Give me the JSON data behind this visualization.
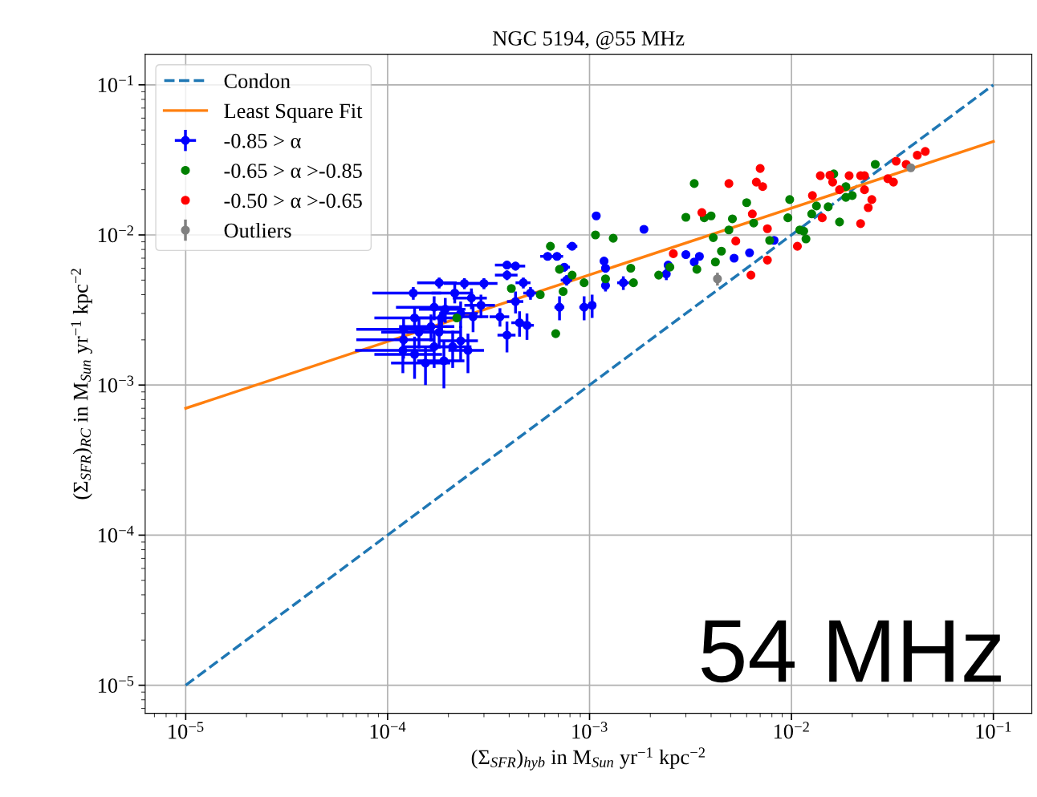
{
  "chart_data": {
    "type": "scatter",
    "title": "NGC 5194, @55 MHz",
    "xlabel": "(Σ$_{SFR}$)$_{hyb}$ in M$_{Sun}$ yr$^{−1}$ kpc$^{−2}$",
    "ylabel": "(Σ$_{SFR}$)$_{RC}$ in M$_{Sun}$ yr$^{−1}$ kpc$^{−2}$",
    "annotations": [
      "54 MHz"
    ],
    "log": "xy",
    "grid": true,
    "legend": "top left",
    "marker": "circle",
    "xlim": [
      6.3e-06,
      0.155
    ],
    "ylim": [
      6.5e-06,
      0.16
    ],
    "xticks": [
      {
        "value": 1e-05,
        "label": "10$^{−5}$"
      },
      {
        "value": 0.0001,
        "label": "10$^{−4}$"
      },
      {
        "value": 0.001,
        "label": "10$^{−3}$"
      },
      {
        "value": 0.01,
        "label": "10$^{−2}$"
      },
      {
        "value": 0.1,
        "label": "10$^{−1}$"
      }
    ],
    "yticks": [
      {
        "value": 1e-05,
        "label": "10$^{−5}$"
      },
      {
        "value": 0.0001,
        "label": "10$^{−4}$"
      },
      {
        "value": 0.001,
        "label": "10$^{−3}$"
      },
      {
        "value": 0.01,
        "label": "10$^{−2}$"
      },
      {
        "value": 0.1,
        "label": "10$^{−1}$"
      }
    ],
    "series": [
      {
        "name": "Condon",
        "type": "line",
        "line_style": "dashed",
        "marker": "none",
        "color": "#1f77b4",
        "x": [
          1e-05,
          0.1
        ],
        "values": [
          1e-05,
          0.1
        ]
      },
      {
        "name": "Least Square Fit",
        "type": "line",
        "line_style": "solid",
        "marker": "none",
        "color": "#ff7f0e",
        "x": [
          1e-05,
          0.1
        ],
        "values": [
          0.0007,
          0.042
        ]
      },
      {
        "name": "-0.85 > α",
        "color": "#0000ff",
        "x": [
          0.00108,
          0.00082,
          0.00062,
          0.00069,
          0.00075,
          0.00077,
          0.00071,
          0.00094,
          0.00103,
          0.00118,
          0.0012,
          0.0012,
          0.00039,
          0.00043,
          0.00039,
          0.00047,
          0.00051,
          0.00043,
          0.00036,
          0.00045,
          0.00049,
          0.00039,
          0.0003,
          0.00024,
          0.00018,
          0.000134,
          0.000215,
          0.00026,
          0.00029,
          0.000265,
          0.00023,
          0.000193,
          0.00017,
          0.000136,
          0.00012,
          0.000143,
          0.00012,
          0.000119,
          0.000136,
          0.00017,
          0.00018,
          0.00021,
          0.00023,
          0.00025,
          0.00019,
          0.000154,
          0.000185,
          0.000164,
          0.00186,
          0.003,
          0.0035,
          0.0033,
          0.00245,
          0.0024,
          0.00147,
          0.0052,
          0.0062,
          0.0082
        ],
        "values": [
          0.0134,
          0.0084,
          0.0072,
          0.0072,
          0.0061,
          0.005,
          0.0033,
          0.0033,
          0.0034,
          0.0067,
          0.006,
          0.0046,
          0.0063,
          0.0062,
          0.0054,
          0.0048,
          0.0041,
          0.0036,
          0.00285,
          0.0026,
          0.0025,
          0.00215,
          0.00475,
          0.00475,
          0.0048,
          0.0041,
          0.0041,
          0.0038,
          0.0034,
          0.00285,
          0.003,
          0.0032,
          0.0033,
          0.0028,
          0.00235,
          0.00225,
          0.002,
          0.0017,
          0.0016,
          0.0018,
          0.00225,
          0.0018,
          0.00197,
          0.0017,
          0.00145,
          0.0014,
          0.0028,
          0.00245,
          0.0109,
          0.0074,
          0.0072,
          0.0066,
          0.0063,
          0.0055,
          0.0048,
          0.007,
          0.0076,
          0.0092
        ],
        "xerrors": [
          5e-05,
          5e-05,
          5e-05,
          5e-05,
          5e-05,
          5e-05,
          4e-05,
          5e-05,
          5e-05,
          5e-05,
          5e-05,
          5e-05,
          5e-05,
          5e-05,
          5e-05,
          4e-05,
          4e-05,
          4e-05,
          4e-05,
          4e-05,
          4e-05,
          4e-05,
          5e-05,
          5e-05,
          4e-05,
          5e-05,
          5e-05,
          5e-05,
          5e-05,
          5e-05,
          5e-05,
          5e-05,
          6e-05,
          5e-05,
          5e-05,
          5e-05,
          5e-05,
          5e-05,
          5e-05,
          5e-05,
          5e-05,
          5e-05,
          5e-05,
          5e-05,
          5e-05,
          5e-05,
          5e-05,
          5e-05,
          5e-05,
          0.0001,
          0.0001,
          0.0001,
          0.0001,
          0.0001,
          0.0001,
          0.0001,
          0.0001,
          0.0001
        ],
        "errors": [
          0.0004,
          0.0004,
          0.0004,
          0.0004,
          0.0004,
          0.0004,
          0.0006,
          0.0006,
          0.0006,
          0.0004,
          0.0004,
          0.0004,
          0.0004,
          0.0004,
          0.0004,
          0.0004,
          0.0004,
          0.0006,
          0.0004,
          0.0005,
          0.0005,
          0.0005,
          0.0004,
          0.0004,
          0.0004,
          0.0004,
          0.0006,
          0.0006,
          0.0006,
          0.0006,
          0.0006,
          0.0006,
          0.0006,
          0.0005,
          0.0005,
          0.0005,
          0.0005,
          0.0005,
          0.0005,
          0.0005,
          0.0005,
          0.0005,
          0.0005,
          0.0005,
          0.0005,
          0.0004,
          0.0005,
          0.0005,
          0.0003,
          0.0003,
          0.0003,
          0.0003,
          0.0003,
          0.0005,
          0.0005,
          0.0003,
          0.0003,
          0.0003
        ]
      },
      {
        "name": "-0.65 > α >-0.85",
        "color": "#008000",
        "x": [
          0.00064,
          0.00107,
          0.00131,
          0.00071,
          0.00082,
          0.00074,
          0.00094,
          0.0012,
          0.00057,
          0.00041,
          0.00022,
          0.00068,
          0.0033,
          0.003,
          0.0037,
          0.004,
          0.0051,
          0.006,
          0.0049,
          0.0041,
          0.0065,
          0.0045,
          0.0042,
          0.0034,
          0.0025,
          0.0022,
          0.0016,
          0.00165,
          0.0078,
          0.0096,
          0.0098,
          0.011,
          0.0118,
          0.0115,
          0.0126,
          0.0133,
          0.0152,
          0.0173,
          0.0186,
          0.02,
          0.0186,
          0.0162,
          0.026
        ],
        "values": [
          0.0084,
          0.01,
          0.0095,
          0.0059,
          0.0054,
          0.0042,
          0.0048,
          0.0051,
          0.004,
          0.0044,
          0.0028,
          0.0022,
          0.022,
          0.0131,
          0.013,
          0.0134,
          0.0128,
          0.0164,
          0.0108,
          0.0096,
          0.012,
          0.0078,
          0.0066,
          0.0059,
          0.0061,
          0.0054,
          0.006,
          0.0048,
          0.0092,
          0.013,
          0.0172,
          0.0108,
          0.0094,
          0.0106,
          0.0138,
          0.0156,
          0.0154,
          0.0122,
          0.0178,
          0.0183,
          0.021,
          0.0255,
          0.0295
        ]
      },
      {
        "name": "-0.50 > α >-0.65",
        "color": "#ff0000",
        "x": [
          0.007,
          0.0049,
          0.0067,
          0.0072,
          0.0036,
          0.0064,
          0.0076,
          0.0053,
          0.0026,
          0.0076,
          0.0063,
          0.0107,
          0.0142,
          0.0127,
          0.0139,
          0.0155,
          0.016,
          0.0173,
          0.0193,
          0.022,
          0.023,
          0.023,
          0.025,
          0.024,
          0.022,
          0.03,
          0.032,
          0.033,
          0.037,
          0.042,
          0.046
        ],
        "values": [
          0.0277,
          0.022,
          0.0225,
          0.021,
          0.0141,
          0.0138,
          0.011,
          0.0091,
          0.0075,
          0.0068,
          0.0054,
          0.0084,
          0.013,
          0.0183,
          0.0248,
          0.025,
          0.0225,
          0.02,
          0.0248,
          0.0248,
          0.0248,
          0.02,
          0.0172,
          0.0152,
          0.0119,
          0.0237,
          0.0225,
          0.031,
          0.0295,
          0.034,
          0.036
        ]
      },
      {
        "name": "Outliers",
        "color": "#808080",
        "x": [
          0.0043,
          0.039
        ],
        "values": [
          0.0051,
          0.028
        ],
        "errors": [
          0.0005,
          0.0003
        ]
      }
    ]
  }
}
